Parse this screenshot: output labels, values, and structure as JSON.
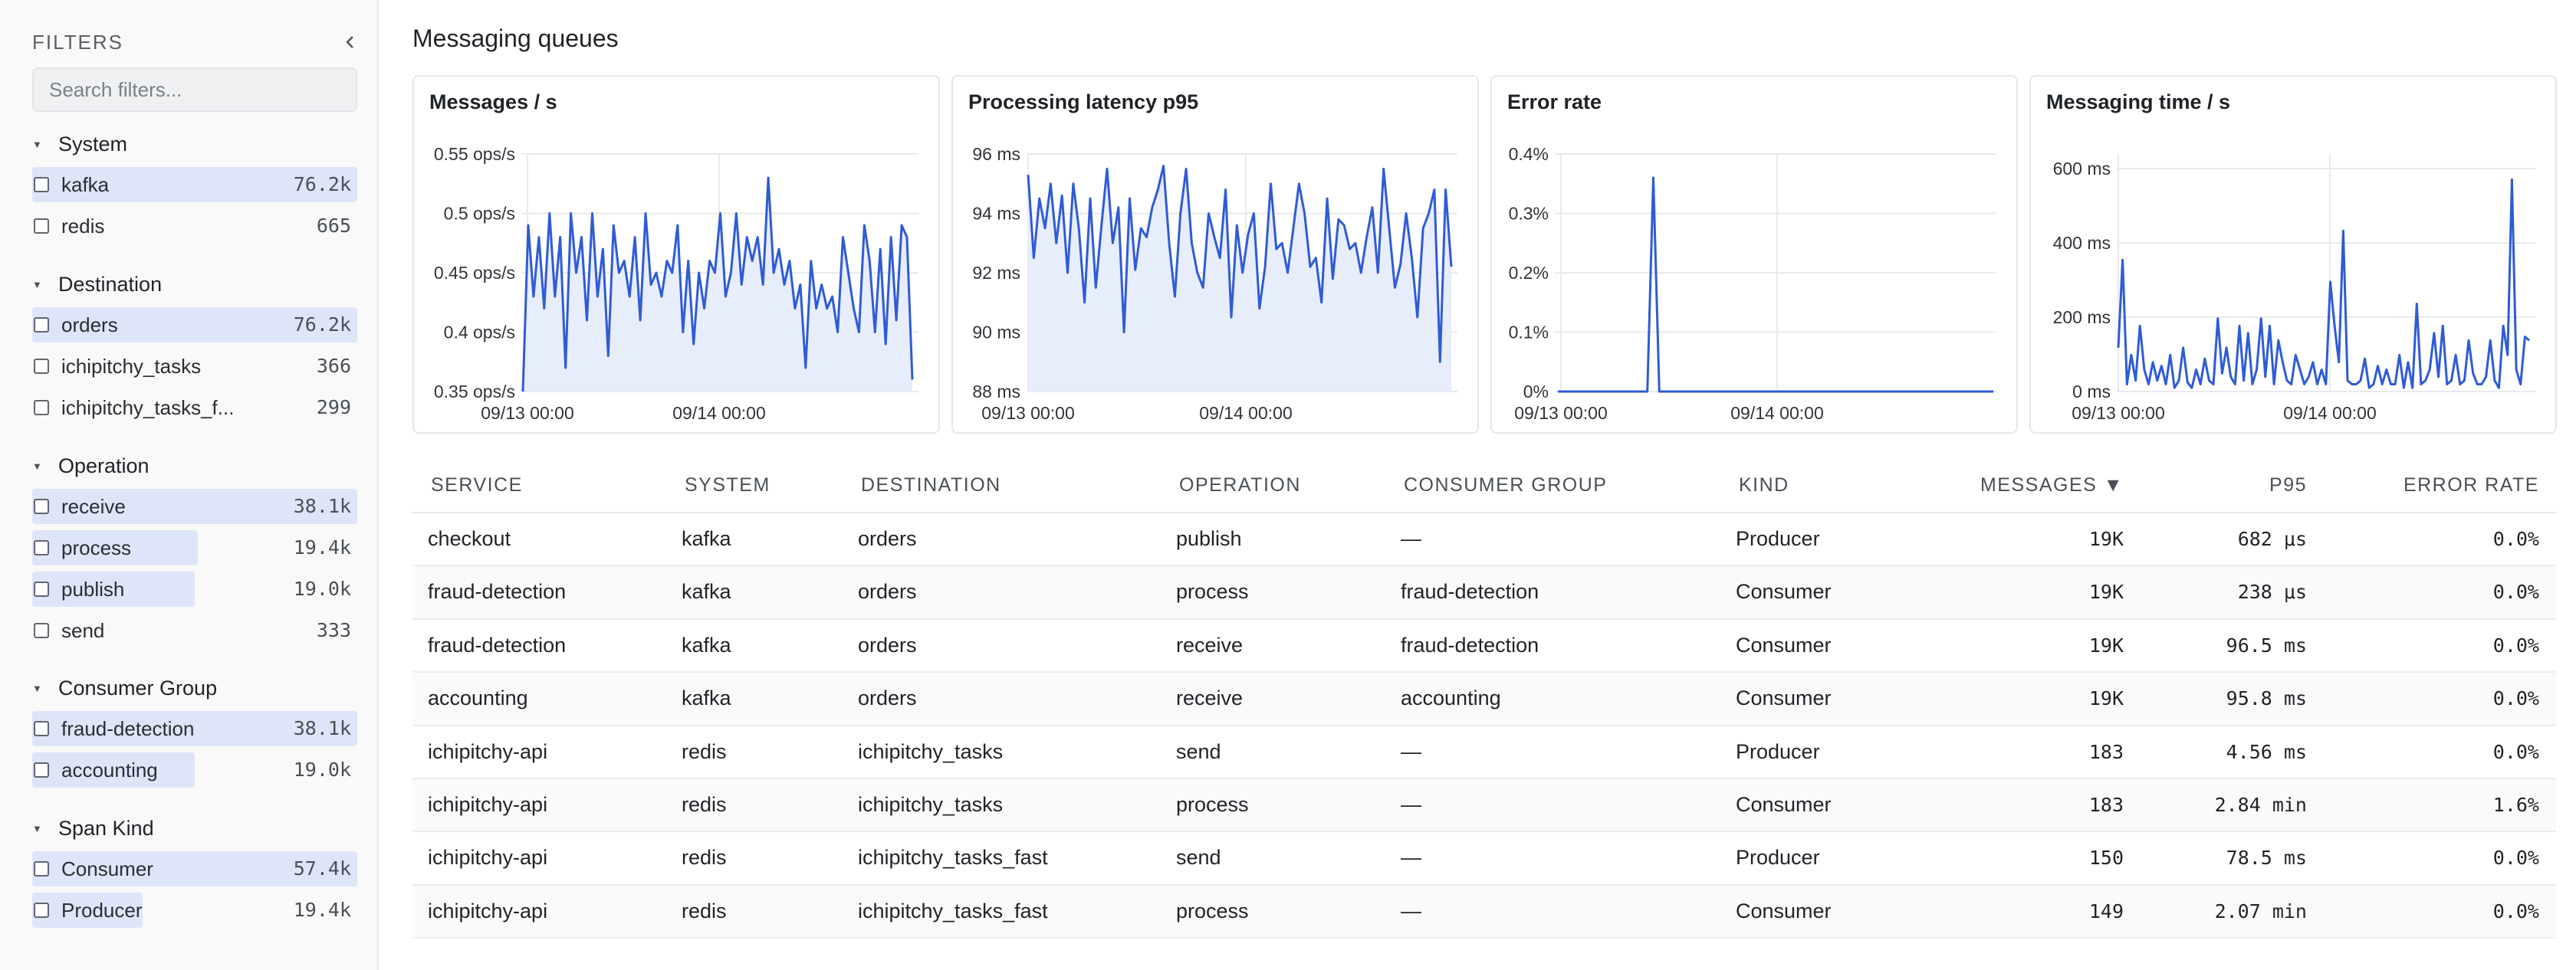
{
  "sidebar": {
    "title": "FILTERS",
    "search_placeholder": "Search filters...",
    "groups": [
      {
        "label": "System",
        "items": [
          {
            "label": "kafka",
            "count": "76.2k",
            "fill": 1.0
          },
          {
            "label": "redis",
            "count": "665",
            "fill": 0.0
          }
        ]
      },
      {
        "label": "Destination",
        "items": [
          {
            "label": "orders",
            "count": "76.2k",
            "fill": 1.0
          },
          {
            "label": "ichipitchy_tasks",
            "count": "366",
            "fill": 0.0
          },
          {
            "label": "ichipitchy_tasks_f...",
            "count": "299",
            "fill": 0.0
          }
        ]
      },
      {
        "label": "Operation",
        "items": [
          {
            "label": "receive",
            "count": "38.1k",
            "fill": 1.0
          },
          {
            "label": "process",
            "count": "19.4k",
            "fill": 0.51
          },
          {
            "label": "publish",
            "count": "19.0k",
            "fill": 0.5
          },
          {
            "label": "send",
            "count": "333",
            "fill": 0.0
          }
        ]
      },
      {
        "label": "Consumer Group",
        "items": [
          {
            "label": "fraud-detection",
            "count": "38.1k",
            "fill": 1.0
          },
          {
            "label": "accounting",
            "count": "19.0k",
            "fill": 0.5
          }
        ]
      },
      {
        "label": "Span Kind",
        "items": [
          {
            "label": "Consumer",
            "count": "57.4k",
            "fill": 1.0
          },
          {
            "label": "Producer",
            "count": "19.4k",
            "fill": 0.34
          }
        ]
      }
    ]
  },
  "main": {
    "title": "Messaging queues",
    "charts": [
      {
        "title": "Messages / s",
        "yticks": [
          "0.55 ops/s",
          "0.5 ops/s",
          "0.45 ops/s",
          "0.4 ops/s",
          "0.35 ops/s"
        ],
        "xticks": [
          "09/13 00:00",
          "09/14 00:00"
        ],
        "fill_area": true
      },
      {
        "title": "Processing latency p95",
        "yticks": [
          "96 ms",
          "94 ms",
          "92 ms",
          "90 ms",
          "88 ms"
        ],
        "xticks": [
          "09/13 00:00",
          "09/14 00:00"
        ],
        "fill_area": true
      },
      {
        "title": "Error rate",
        "yticks": [
          "0.4%",
          "0.3%",
          "0.2%",
          "0.1%",
          "0%"
        ],
        "xticks": [
          "09/13 00:00",
          "09/14 00:00"
        ],
        "fill_area": false
      },
      {
        "title": "Messaging time / s",
        "yticks": [
          "600 ms",
          "400 ms",
          "200 ms",
          "0 ms"
        ],
        "xticks": [
          "09/13 00:00",
          "09/14 00:00"
        ],
        "fill_area": false
      }
    ],
    "table": {
      "headers": [
        "SERVICE",
        "SYSTEM",
        "DESTINATION",
        "OPERATION",
        "CONSUMER GROUP",
        "KIND",
        "MESSAGES ▼",
        "P95",
        "ERROR RATE"
      ],
      "rows": [
        [
          "checkout",
          "kafka",
          "orders",
          "publish",
          "—",
          "Producer",
          "19K",
          "682 μs",
          "0.0%"
        ],
        [
          "fraud-detection",
          "kafka",
          "orders",
          "process",
          "fraud-detection",
          "Consumer",
          "19K",
          "238 μs",
          "0.0%"
        ],
        [
          "fraud-detection",
          "kafka",
          "orders",
          "receive",
          "fraud-detection",
          "Consumer",
          "19K",
          "96.5 ms",
          "0.0%"
        ],
        [
          "accounting",
          "kafka",
          "orders",
          "receive",
          "accounting",
          "Consumer",
          "19K",
          "95.8 ms",
          "0.0%"
        ],
        [
          "ichipitchy-api",
          "redis",
          "ichipitchy_tasks",
          "send",
          "—",
          "Producer",
          "183",
          "4.56 ms",
          "0.0%"
        ],
        [
          "ichipitchy-api",
          "redis",
          "ichipitchy_tasks",
          "process",
          "—",
          "Consumer",
          "183",
          "2.84 min",
          "1.6%"
        ],
        [
          "ichipitchy-api",
          "redis",
          "ichipitchy_tasks_fast",
          "send",
          "—",
          "Producer",
          "150",
          "78.5 ms",
          "0.0%"
        ],
        [
          "ichipitchy-api",
          "redis",
          "ichipitchy_tasks_fast",
          "process",
          "—",
          "Consumer",
          "149",
          "2.07 min",
          "0.0%"
        ]
      ]
    }
  },
  "colors": {
    "line": "#2f5bd7",
    "area": "#e8edfb",
    "bar_fill": "#dfe5f8",
    "grid": "#e9eaed"
  },
  "chart_data": [
    {
      "type": "area",
      "title": "Messages / s",
      "ylabel": "ops/s",
      "ylim": [
        0.35,
        0.55
      ],
      "x_range": [
        "09/12 ~18:00",
        "09/14 ~18:00"
      ],
      "series": [
        {
          "values": [
            0.35,
            0.49,
            0.43,
            0.48,
            0.42,
            0.5,
            0.43,
            0.48,
            0.37,
            0.5,
            0.45,
            0.48,
            0.41,
            0.5,
            0.43,
            0.47,
            0.38,
            0.49,
            0.45,
            0.46,
            0.43,
            0.48,
            0.41,
            0.5,
            0.44,
            0.45,
            0.43,
            0.46,
            0.45,
            0.49,
            0.4,
            0.46,
            0.39,
            0.45,
            0.42,
            0.46,
            0.45,
            0.5,
            0.43,
            0.45,
            0.5,
            0.44,
            0.48,
            0.46,
            0.48,
            0.44,
            0.53,
            0.45,
            0.47,
            0.44,
            0.46,
            0.42,
            0.44,
            0.37,
            0.46,
            0.42,
            0.44,
            0.42,
            0.43,
            0.4,
            0.48,
            0.45,
            0.42,
            0.4,
            0.49,
            0.46,
            0.4,
            0.47,
            0.39,
            0.48,
            0.41,
            0.49,
            0.48,
            0.36
          ]
        }
      ]
    },
    {
      "type": "area",
      "title": "Processing latency p95",
      "ylabel": "ms",
      "ylim": [
        88,
        96
      ],
      "x_range": [
        "09/12 ~23:00",
        "09/14 ~23:00"
      ],
      "series": [
        {
          "values": [
            95.3,
            92.5,
            94.5,
            93.5,
            95,
            93,
            94.6,
            92,
            95,
            93.5,
            91,
            94.5,
            91.5,
            93.6,
            95.5,
            93,
            94.2,
            90,
            94.5,
            92.1,
            93.5,
            93.2,
            94.2,
            94.8,
            95.6,
            93,
            91.2,
            94,
            95.5,
            93,
            92,
            91.5,
            94,
            93.2,
            92.5,
            94.8,
            90.5,
            93.6,
            92,
            93.3,
            94,
            90.8,
            92.2,
            95,
            92.8,
            93,
            92,
            93.5,
            95,
            94,
            92.2,
            92.5,
            91,
            94.5,
            91.8,
            93.8,
            93.6,
            92.8,
            93,
            92,
            93.2,
            94.2,
            92,
            95.5,
            93.5,
            91.5,
            92.3,
            94,
            92.5,
            90.5,
            93.5,
            94,
            94.8,
            89,
            94.8,
            92.2
          ]
        }
      ]
    },
    {
      "type": "line",
      "title": "Error rate",
      "ylabel": "%",
      "ylim": [
        0,
        0.4
      ],
      "x_range": [
        "09/13 00:00",
        "09/15 ~06:00"
      ],
      "series": [
        {
          "values": [
            0,
            0,
            0,
            0,
            0,
            0,
            0,
            0,
            0,
            0,
            0,
            0,
            0,
            0,
            0,
            0,
            0.36,
            0,
            0,
            0,
            0,
            0,
            0,
            0,
            0,
            0,
            0,
            0,
            0,
            0,
            0,
            0,
            0,
            0,
            0,
            0,
            0,
            0,
            0,
            0,
            0,
            0,
            0,
            0,
            0,
            0,
            0,
            0,
            0,
            0,
            0,
            0,
            0,
            0,
            0,
            0,
            0,
            0,
            0,
            0,
            0,
            0,
            0,
            0,
            0,
            0,
            0,
            0,
            0,
            0,
            0,
            0,
            0,
            0
          ]
        }
      ]
    },
    {
      "type": "line",
      "title": "Messaging time / s",
      "ylabel": "ms",
      "ylim": [
        0,
        650
      ],
      "x_range": [
        "09/12 ~23:00",
        "09/14 ~23:00"
      ],
      "series": [
        {
          "values": [
            120,
            360,
            20,
            100,
            30,
            180,
            60,
            20,
            80,
            30,
            70,
            20,
            100,
            10,
            30,
            120,
            25,
            10,
            60,
            20,
            90,
            30,
            20,
            200,
            50,
            120,
            40,
            20,
            180,
            30,
            160,
            20,
            60,
            200,
            40,
            180,
            20,
            140,
            80,
            30,
            20,
            100,
            60,
            20,
            40,
            80,
            20,
            60,
            20,
            300,
            180,
            80,
            440,
            30,
            20,
            20,
            30,
            90,
            10,
            20,
            70,
            20,
            60,
            20,
            20,
            100,
            10,
            80,
            10,
            240,
            20,
            30,
            60,
            160,
            40,
            180,
            20,
            30,
            100,
            20,
            30,
            140,
            50,
            20,
            20,
            40,
            140,
            30,
            10,
            180,
            100,
            580,
            60,
            20,
            150,
            140
          ]
        }
      ]
    }
  ]
}
